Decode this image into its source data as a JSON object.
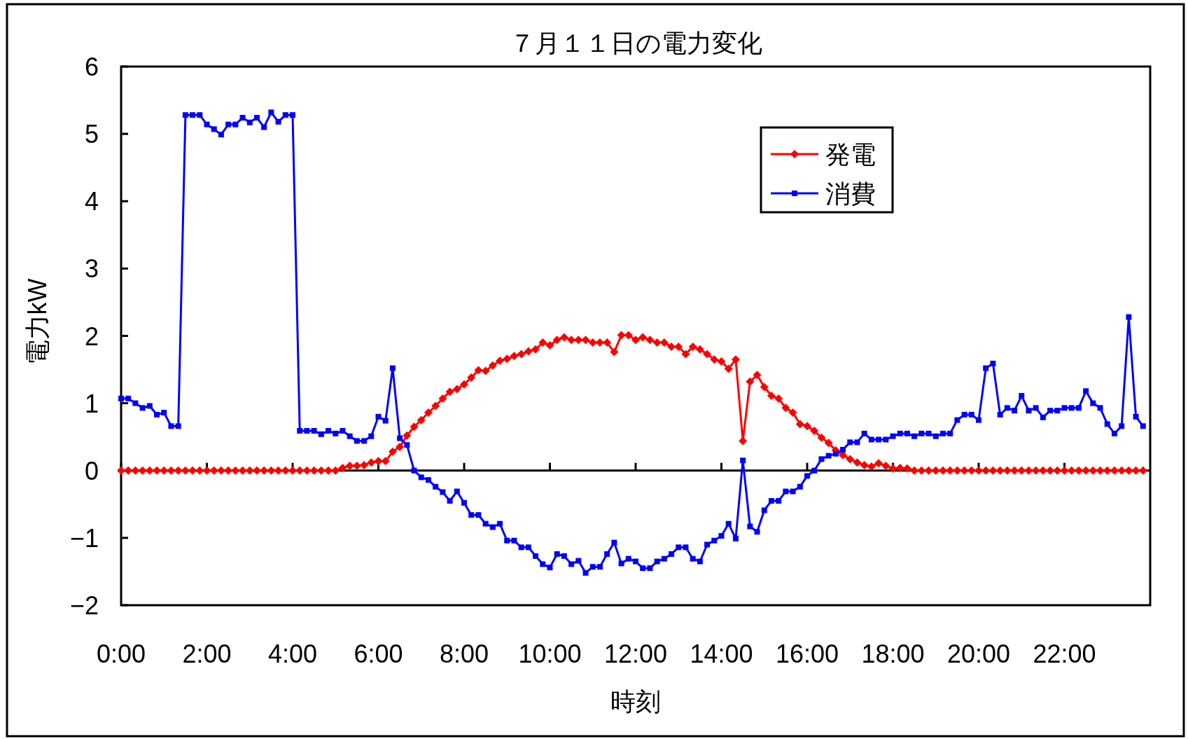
{
  "chart_data": {
    "type": "line",
    "title": "７月１１日の電力変化",
    "xlabel": "時刻",
    "ylabel": "電力kW",
    "x": [
      0,
      0.1667,
      0.3333,
      0.5,
      0.6667,
      0.8333,
      1,
      1.1667,
      1.3333,
      1.5,
      1.6667,
      1.8333,
      2,
      2.1667,
      2.3333,
      2.5,
      2.6667,
      2.8333,
      3,
      3.1667,
      3.3333,
      3.5,
      3.6667,
      3.8333,
      4,
      4.1667,
      4.3333,
      4.5,
      4.6667,
      4.8333,
      5,
      5.1667,
      5.3333,
      5.5,
      5.6667,
      5.8333,
      6,
      6.1667,
      6.3333,
      6.5,
      6.6667,
      6.8333,
      7,
      7.1667,
      7.3333,
      7.5,
      7.6667,
      7.8333,
      8,
      8.1667,
      8.3333,
      8.5,
      8.6667,
      8.8333,
      9,
      9.1667,
      9.3333,
      9.5,
      9.6667,
      9.8333,
      10,
      10.1667,
      10.3333,
      10.5,
      10.6667,
      10.8333,
      11,
      11.1667,
      11.3333,
      11.5,
      11.6667,
      11.8333,
      12,
      12.1667,
      12.3333,
      12.5,
      12.6667,
      12.8333,
      13,
      13.1667,
      13.3333,
      13.5,
      13.6667,
      13.8333,
      14,
      14.1667,
      14.3333,
      14.5,
      14.6667,
      14.8333,
      15,
      15.1667,
      15.3333,
      15.5,
      15.6667,
      15.8333,
      16,
      16.1667,
      16.3333,
      16.5,
      16.6667,
      16.8333,
      17,
      17.1667,
      17.3333,
      17.5,
      17.6667,
      17.8333,
      18,
      18.1667,
      18.3333,
      18.5,
      18.6667,
      18.8333,
      19,
      19.1667,
      19.3333,
      19.5,
      19.6667,
      19.8333,
      20,
      20.1667,
      20.3333,
      20.5,
      20.6667,
      20.8333,
      21,
      21.1667,
      21.3333,
      21.5,
      21.6667,
      21.8333,
      22,
      22.1667,
      22.3333,
      22.5,
      22.6667,
      22.8333,
      23,
      23.1667,
      23.3333,
      23.5,
      23.6667,
      23.8333
    ],
    "series": [
      {
        "name": "発電",
        "color": "#ff0000",
        "marker": "diamond",
        "values": [
          0,
          0,
          0,
          0,
          0,
          0,
          0,
          0,
          0,
          0,
          0,
          0,
          0,
          0,
          0,
          0,
          0,
          0,
          0,
          0,
          0,
          0,
          0,
          0,
          0,
          0,
          0,
          0,
          0,
          0,
          0,
          0.04,
          0.07,
          0.07,
          0.08,
          0.12,
          0.14,
          0.14,
          0.28,
          0.35,
          0.52,
          0.65,
          0.75,
          0.86,
          0.96,
          1.07,
          1.17,
          1.21,
          1.28,
          1.38,
          1.49,
          1.48,
          1.56,
          1.63,
          1.66,
          1.7,
          1.73,
          1.77,
          1.8,
          1.9,
          1.86,
          1.94,
          1.98,
          1.94,
          1.94,
          1.94,
          1.9,
          1.9,
          1.9,
          1.76,
          2.01,
          2.01,
          1.94,
          1.98,
          1.94,
          1.9,
          1.9,
          1.84,
          1.84,
          1.73,
          1.84,
          1.8,
          1.73,
          1.65,
          1.62,
          1.51,
          1.65,
          0.44,
          1.32,
          1.42,
          1.24,
          1.11,
          1.07,
          0.93,
          0.86,
          0.69,
          0.66,
          0.59,
          0.49,
          0.41,
          0.3,
          0.23,
          0.17,
          0.12,
          0.08,
          0.06,
          0.11,
          0.07,
          0.03,
          0.04,
          0.03,
          0,
          0,
          0,
          0,
          0,
          0,
          0,
          0,
          0,
          0,
          0,
          0,
          0,
          0,
          0,
          0,
          0,
          0,
          0,
          0,
          0,
          0,
          0,
          0,
          0,
          0,
          0,
          0,
          0,
          0,
          0,
          0,
          0
        ]
      },
      {
        "name": "消費",
        "color": "#0000ff",
        "marker": "square",
        "values": [
          1.07,
          1.07,
          1.0,
          0.93,
          0.96,
          0.83,
          0.86,
          0.66,
          0.66,
          5.28,
          5.28,
          5.28,
          5.14,
          5.07,
          4.99,
          5.14,
          5.14,
          5.24,
          5.17,
          5.24,
          5.1,
          5.32,
          5.18,
          5.28,
          5.28,
          0.59,
          0.59,
          0.59,
          0.54,
          0.59,
          0.55,
          0.59,
          0.51,
          0.44,
          0.44,
          0.51,
          0.8,
          0.74,
          1.52,
          0.48,
          0.38,
          0.0,
          -0.1,
          -0.14,
          -0.24,
          -0.32,
          -0.45,
          -0.31,
          -0.48,
          -0.66,
          -0.66,
          -0.79,
          -0.84,
          -0.79,
          -1.04,
          -1.04,
          -1.14,
          -1.14,
          -1.27,
          -1.39,
          -1.44,
          -1.24,
          -1.27,
          -1.39,
          -1.34,
          -1.52,
          -1.43,
          -1.43,
          -1.24,
          -1.07,
          -1.38,
          -1.31,
          -1.35,
          -1.45,
          -1.45,
          -1.35,
          -1.31,
          -1.24,
          -1.14,
          -1.14,
          -1.31,
          -1.35,
          -1.1,
          -1.04,
          -0.97,
          -0.79,
          -1.01,
          0.15,
          -0.83,
          -0.91,
          -0.59,
          -0.45,
          -0.45,
          -0.31,
          -0.31,
          -0.24,
          -0.08,
          0.0,
          0.17,
          0.22,
          0.25,
          0.31,
          0.42,
          0.42,
          0.55,
          0.46,
          0.46,
          0.46,
          0.51,
          0.55,
          0.55,
          0.51,
          0.55,
          0.55,
          0.51,
          0.55,
          0.55,
          0.75,
          0.83,
          0.83,
          0.75,
          1.52,
          1.59,
          0.83,
          0.93,
          0.89,
          1.11,
          0.89,
          0.93,
          0.79,
          0.89,
          0.89,
          0.93,
          0.93,
          0.93,
          1.18,
          1.0,
          0.93,
          0.69,
          0.55,
          0.66,
          2.28,
          0.8,
          0.66
        ]
      }
    ],
    "xlim": [
      0,
      24
    ],
    "xticks": [
      {
        "value": 0,
        "label": "0:00"
      },
      {
        "value": 2,
        "label": "2:00"
      },
      {
        "value": 4,
        "label": "4:00"
      },
      {
        "value": 6,
        "label": "6:00"
      },
      {
        "value": 8,
        "label": "8:00"
      },
      {
        "value": 10,
        "label": "10:00"
      },
      {
        "value": 12,
        "label": "12:00"
      },
      {
        "value": 14,
        "label": "14:00"
      },
      {
        "value": 16,
        "label": "16:00"
      },
      {
        "value": 18,
        "label": "18:00"
      },
      {
        "value": 20,
        "label": "20:00"
      },
      {
        "value": 22,
        "label": "22:00"
      }
    ],
    "ylim": [
      -2,
      6
    ],
    "yticks": [
      -2,
      -1,
      0,
      1,
      2,
      3,
      4,
      5,
      6
    ],
    "legend": "top right"
  }
}
